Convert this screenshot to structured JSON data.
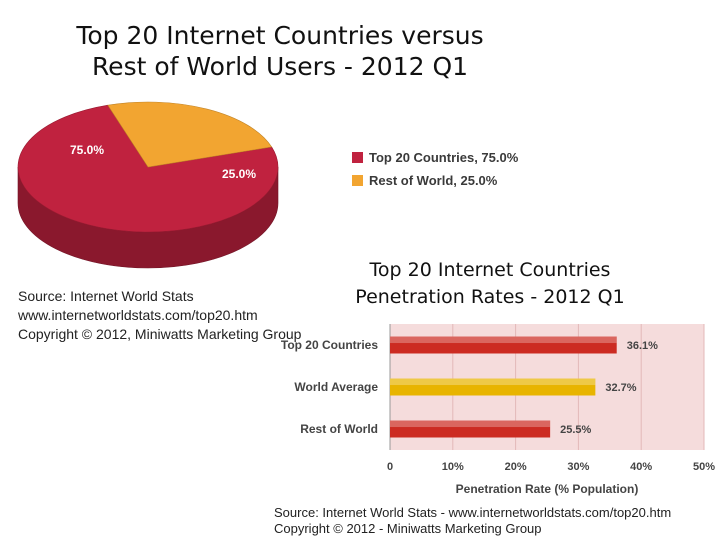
{
  "charts": {
    "pie": {
      "title_line1": "Top 20 Internet Countries versus",
      "title_line2": "Rest of World Users - 2012 Q1",
      "source_lines": [
        "Source: Internet World Stats",
        "www.internetworldstats.com/top20.htm",
        "Copyright © 2012,  Miniwatts Marketing Group"
      ]
    },
    "bar": {
      "title_line1": "Top 20 Internet Countries",
      "title_line2": "Penetration Rates -  2012 Q1",
      "source_lines": [
        "Source: Internet World Stats - www.internetworldstats.com/top20.htm",
        "Copyright © 2012 - Miniwatts Marketing Group"
      ]
    }
  },
  "colors": {
    "pie_top20": "#c0223f",
    "pie_rest": "#f2a531",
    "bar_top20": "#cc2b22",
    "bar_world": "#e8b400",
    "bar_rest": "#cc2b22",
    "bar_plot_bg": "#f5dcdc"
  },
  "chart_data": [
    {
      "type": "pie",
      "title": "Top 20 Internet Countries versus Rest of World Users - 2012 Q1",
      "slices": [
        {
          "label": "Top 20 Countries",
          "value": 75.0,
          "data_label": "75.0%",
          "legend": "Top 20 Countries, 75.0%"
        },
        {
          "label": "Rest of World",
          "value": 25.0,
          "data_label": "25.0%",
          "legend": "Rest of World, 25.0%"
        }
      ],
      "legend_placement": "right",
      "style": "3d"
    },
    {
      "type": "bar",
      "orientation": "horizontal",
      "title": "Top 20 Internet Countries Penetration Rates -  2012 Q1",
      "categories": [
        "Top 20 Countries",
        "World Average",
        "Rest of World"
      ],
      "values": [
        36.1,
        32.7,
        25.5
      ],
      "data_labels": [
        "36.1%",
        "32.7%",
        "25.5%"
      ],
      "xlabel": "Penetration Rate (% Population)",
      "ylabel": "",
      "xlim": [
        0,
        50
      ],
      "xticks": [
        "0",
        "10%",
        "20%",
        "30%",
        "40%",
        "50%"
      ],
      "grid": true
    }
  ]
}
